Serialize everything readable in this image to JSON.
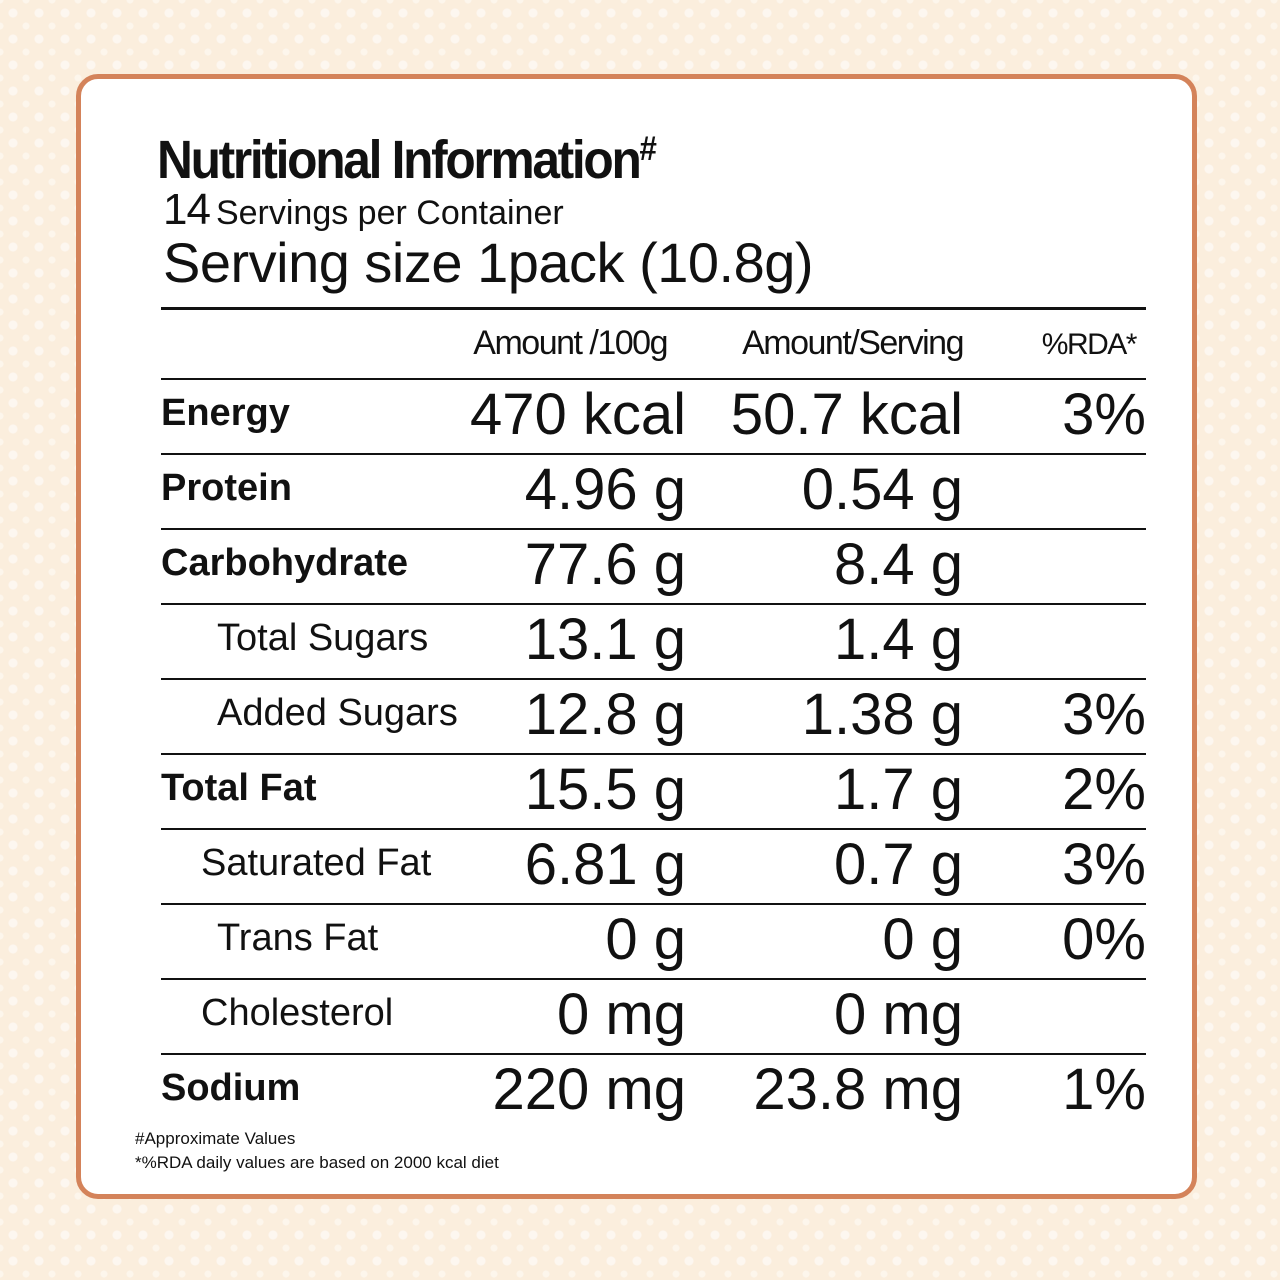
{
  "title": {
    "text": "Nutritional Information",
    "mark": "#"
  },
  "servings": {
    "count": "14",
    "label": "Servings per Container"
  },
  "serving_size": "Serving size 1pack (10.8g)",
  "table": {
    "headers": [
      "Amount /100g",
      "Amount/Serving",
      "%RDA*"
    ],
    "rows": [
      {
        "label": "Energy",
        "per100g": "470 kcal",
        "per_serving": "50.7 kcal",
        "rda": "3%",
        "bold": true
      },
      {
        "label": "Protein",
        "per100g": "4.96 g",
        "per_serving": "0.54 g",
        "rda": "",
        "bold": true
      },
      {
        "label": "Carbohydrate",
        "per100g": "77.6 g",
        "per_serving": "8.4 g",
        "rda": "",
        "bold": true
      },
      {
        "label": "Total Sugars",
        "per100g": "13.1 g",
        "per_serving": "1.4 g",
        "rda": "",
        "bold": false
      },
      {
        "label": "Added Sugars",
        "per100g": "12.8 g",
        "per_serving": "1.38 g",
        "rda": "3%",
        "bold": false
      },
      {
        "label": "Total Fat",
        "per100g": "15.5 g",
        "per_serving": "1.7 g",
        "rda": "2%",
        "bold": true
      },
      {
        "label": "Saturated Fat",
        "per100g": "6.81 g",
        "per_serving": "0.7 g",
        "rda": "3%",
        "bold": false
      },
      {
        "label": "Trans Fat",
        "per100g": "0 g",
        "per_serving": "0 g",
        "rda": "0%",
        "bold": false
      },
      {
        "label": "Cholesterol",
        "per100g": "0 mg",
        "per_serving": "0 mg",
        "rda": "",
        "bold": false
      },
      {
        "label": "Sodium",
        "per100g": "220 mg",
        "per_serving": "23.8 mg",
        "rda": "1%",
        "bold": true
      }
    ]
  },
  "footnotes": [
    "#Approximate Values",
    "*%RDA daily values are based on 2000 kcal diet"
  ],
  "colors": {
    "border": "#d4835a",
    "background": "#fbeedd",
    "text": "#111111"
  }
}
